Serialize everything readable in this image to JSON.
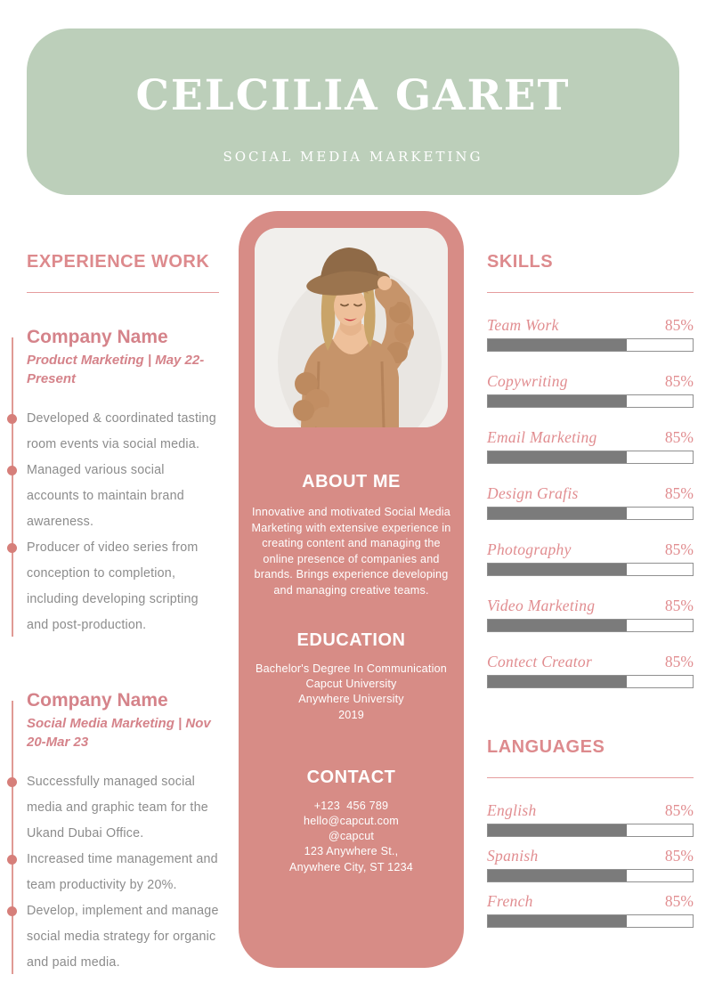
{
  "header": {
    "name": "CELCILIA GARET",
    "role": "SOCIAL MEDIA MARKETING"
  },
  "experience": {
    "title": "EXPERIENCE WORK",
    "jobs": [
      {
        "company": "Company Name",
        "meta": "Product Marketing | May 22-Present",
        "bullets": [
          "Developed & coordinated tasting room events via social media.",
          "Managed various social accounts to maintain brand awareness.",
          "Producer of video series from conception to completion, including developing scripting and post-production."
        ]
      },
      {
        "company": "Company Name",
        "meta": "Social Media Marketing | Nov 20-Mar 23",
        "bullets": [
          "Successfully managed social media and graphic team for the Ukand Dubai Office.",
          "Increased time management and team productivity by 20%.",
          "Develop, implement and manage social media strategy for organic and paid media."
        ]
      }
    ]
  },
  "profile": {
    "photo": "portrait of woman in hat and knit cardigan",
    "about": {
      "title": "ABOUT ME",
      "text": "Innovative and motivated Social Media Marketing with extensive experience in creating content and managing the online presence of companies and brands. Brings experience developing and managing creative teams."
    },
    "education": {
      "title": "EDUCATION",
      "lines": [
        "Bachelor's Degree In Communication",
        "Capcut University",
        "Anywhere University",
        "2019"
      ]
    },
    "contact": {
      "title": "CONTACT",
      "lines": [
        "+123  456 789",
        "hello@capcut.com",
        "@capcut",
        "123 Anywhere St.,",
        "Anywhere City, ST 1234"
      ]
    }
  },
  "skills": {
    "title": "SKILLS",
    "items": [
      {
        "label": "Team Work",
        "pct": "85%",
        "fill": 68
      },
      {
        "label": "Copywriting",
        "pct": "85%",
        "fill": 68
      },
      {
        "label": "Email Marketing",
        "pct": "85%",
        "fill": 68
      },
      {
        "label": "Design Grafis",
        "pct": "85%",
        "fill": 68
      },
      {
        "label": "Photography",
        "pct": "85%",
        "fill": 68
      },
      {
        "label": "Video Marketing",
        "pct": "85%",
        "fill": 68
      },
      {
        "label": "Contect Creator",
        "pct": "85%",
        "fill": 68
      }
    ]
  },
  "languages": {
    "title": "LANGUAGES",
    "items": [
      {
        "label": "English",
        "pct": "85%",
        "fill": 68
      },
      {
        "label": "Spanish",
        "pct": "85%",
        "fill": 68
      },
      {
        "label": "French",
        "pct": "85%",
        "fill": 68
      }
    ]
  },
  "colors": {
    "header_green": "#bccfba",
    "panel_pink": "#d78c86",
    "accent_pink": "#dd8a8d",
    "body_gray": "#8c8c8c",
    "bar_fill_gray": "#7b7b7b"
  }
}
